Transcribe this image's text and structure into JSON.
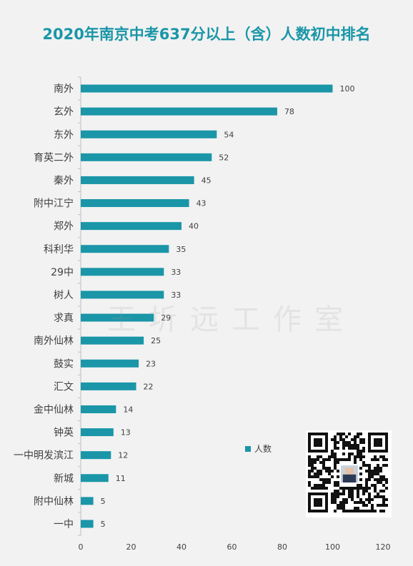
{
  "chart_data": {
    "type": "bar",
    "orientation": "horizontal",
    "title": "2020年南京中考637分以上（含）人数初中排名",
    "categories": [
      "南外",
      "玄外",
      "东外",
      "育英二外",
      "秦外",
      "附中江宁",
      "郑外",
      "科利华",
      "29中",
      "树人",
      "求真",
      "南外仙林",
      "鼓实",
      "汇文",
      "金中仙林",
      "钟英",
      "一中明发滨江",
      "新城",
      "附中仙林",
      "一中"
    ],
    "series": [
      {
        "name": "人数",
        "values": [
          100,
          78,
          54,
          52,
          45,
          43,
          40,
          35,
          33,
          33,
          29,
          25,
          23,
          22,
          14,
          13,
          12,
          11,
          5,
          5
        ]
      }
    ],
    "xlim": [
      0,
      120
    ],
    "xticks": [
      0,
      20,
      40,
      60,
      80,
      100,
      120
    ],
    "grid": false,
    "legend": "right",
    "data_labels": true
  },
  "colors": {
    "bar": "#1a96a8",
    "title": "#1a96a8",
    "text": "#404040",
    "axis": "#bfbfbf",
    "background": "#f2f2f2"
  },
  "watermark": "王圻远工作室",
  "qr_icon": "qr-code-icon"
}
